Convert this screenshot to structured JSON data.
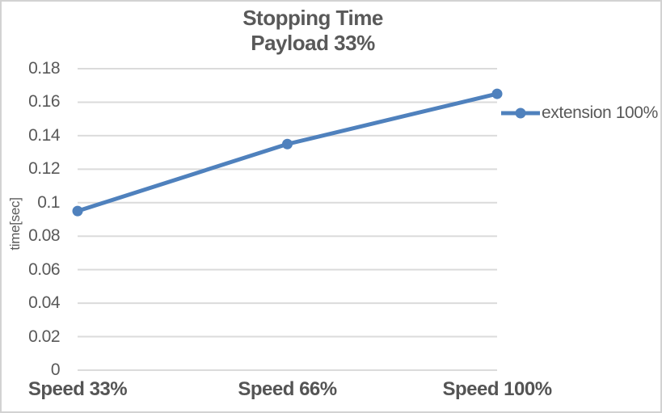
{
  "chart": {
    "title_line1": "Stopping Time",
    "title_line2": "Payload 33%",
    "y_axis_title": "time[sec]",
    "legend_label": "extension 100%"
  },
  "colors": {
    "series": "#4F81BD",
    "gridline": "#DBDBDB",
    "text": "#595959",
    "border": "#D2D2D2",
    "background": "#FFFFFF"
  },
  "chart_data": {
    "type": "line",
    "title": "Stopping Time Payload 33%",
    "categories": [
      "Speed 33%",
      "Speed 66%",
      "Speed 100%"
    ],
    "series": [
      {
        "name": "extension 100%",
        "values": [
          0.095,
          0.135,
          0.165
        ],
        "color": "#4F81BD",
        "marker": "circle"
      }
    ],
    "xlabel": "",
    "ylabel": "time[sec]",
    "ylim": [
      0,
      0.18
    ],
    "ytick_step": 0.02,
    "grid": true,
    "legend_position": "right"
  }
}
